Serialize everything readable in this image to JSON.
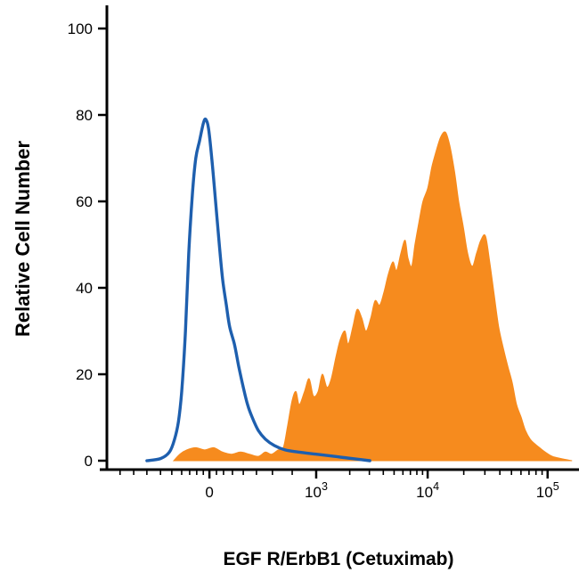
{
  "chart_data": {
    "type": "area",
    "subtype": "flow-cytometry-histogram-overlay",
    "title": "",
    "xlabel": "EGF R/ErbB1 (Cetuximab)",
    "ylabel": "Relative Cell Number",
    "background": "#ffffff",
    "axis_color": "#000000",
    "grid": false,
    "legend": "none",
    "x_scale": "biexponential-log",
    "ylim": [
      0,
      100
    ],
    "y_ticks": [
      0,
      20,
      40,
      60,
      80,
      100
    ],
    "x_ticks": [
      {
        "label": "0",
        "fx": 0.218
      },
      {
        "base": "10",
        "exp": "3",
        "fx": 0.445
      },
      {
        "base": "10",
        "exp": "4",
        "fx": 0.682
      },
      {
        "base": "10",
        "exp": "5",
        "fx": 0.937
      }
    ],
    "minor_ticks_fx": [
      0.028,
      0.057,
      0.085,
      0.114,
      0.138,
      0.159,
      0.176,
      0.191,
      0.205,
      0.233,
      0.248,
      0.267,
      0.29,
      0.318,
      0.352,
      0.394
    ],
    "series": [
      {
        "name": "orange-filled-histogram",
        "style": "filled",
        "color": "#f68b1e",
        "points": [
          [
            0.142,
            0
          ],
          [
            0.155,
            1.5
          ],
          [
            0.17,
            2.5
          ],
          [
            0.189,
            3
          ],
          [
            0.208,
            2.5
          ],
          [
            0.227,
            3
          ],
          [
            0.246,
            2
          ],
          [
            0.265,
            1.5
          ],
          [
            0.284,
            2
          ],
          [
            0.303,
            1.5
          ],
          [
            0.322,
            1
          ],
          [
            0.337,
            2
          ],
          [
            0.35,
            1.5
          ],
          [
            0.364,
            2.5
          ],
          [
            0.375,
            3
          ],
          [
            0.384,
            8
          ],
          [
            0.394,
            14
          ],
          [
            0.402,
            16
          ],
          [
            0.409,
            13
          ],
          [
            0.42,
            16
          ],
          [
            0.43,
            19
          ],
          [
            0.439,
            15
          ],
          [
            0.449,
            16
          ],
          [
            0.458,
            20
          ],
          [
            0.468,
            17
          ],
          [
            0.477,
            19
          ],
          [
            0.487,
            24
          ],
          [
            0.496,
            28
          ],
          [
            0.506,
            30
          ],
          [
            0.513,
            27
          ],
          [
            0.523,
            31
          ],
          [
            0.532,
            35
          ],
          [
            0.542,
            33
          ],
          [
            0.551,
            30
          ],
          [
            0.561,
            33
          ],
          [
            0.57,
            37
          ],
          [
            0.58,
            36
          ],
          [
            0.589,
            39
          ],
          [
            0.598,
            43
          ],
          [
            0.608,
            46
          ],
          [
            0.616,
            44
          ],
          [
            0.625,
            48
          ],
          [
            0.634,
            51
          ],
          [
            0.64,
            47
          ],
          [
            0.648,
            45
          ],
          [
            0.655,
            50
          ],
          [
            0.663,
            55
          ],
          [
            0.672,
            60
          ],
          [
            0.682,
            63
          ],
          [
            0.691,
            68
          ],
          [
            0.701,
            72
          ],
          [
            0.71,
            75
          ],
          [
            0.72,
            76
          ],
          [
            0.729,
            73
          ],
          [
            0.739,
            67
          ],
          [
            0.748,
            60
          ],
          [
            0.758,
            54
          ],
          [
            0.767,
            48
          ],
          [
            0.777,
            45
          ],
          [
            0.786,
            48
          ],
          [
            0.795,
            51
          ],
          [
            0.805,
            52
          ],
          [
            0.814,
            46
          ],
          [
            0.824,
            38
          ],
          [
            0.833,
            31
          ],
          [
            0.843,
            26
          ],
          [
            0.852,
            22
          ],
          [
            0.862,
            18
          ],
          [
            0.871,
            13
          ],
          [
            0.881,
            10
          ],
          [
            0.89,
            7
          ],
          [
            0.9,
            5
          ],
          [
            0.909,
            4
          ],
          [
            0.92,
            3
          ],
          [
            0.932,
            2
          ],
          [
            0.947,
            1
          ],
          [
            0.966,
            0.5
          ],
          [
            0.989,
            0
          ]
        ]
      },
      {
        "name": "blue-outline-histogram",
        "style": "line",
        "color": "#1e5fae",
        "points": [
          [
            0.085,
            0
          ],
          [
            0.114,
            0.5
          ],
          [
            0.133,
            2
          ],
          [
            0.144,
            5
          ],
          [
            0.152,
            9
          ],
          [
            0.159,
            16
          ],
          [
            0.167,
            30
          ],
          [
            0.174,
            48
          ],
          [
            0.182,
            62
          ],
          [
            0.189,
            70
          ],
          [
            0.197,
            74
          ],
          [
            0.205,
            78
          ],
          [
            0.21,
            79
          ],
          [
            0.216,
            77
          ],
          [
            0.223,
            70
          ],
          [
            0.231,
            60
          ],
          [
            0.239,
            50
          ],
          [
            0.246,
            42
          ],
          [
            0.254,
            36
          ],
          [
            0.261,
            31
          ],
          [
            0.271,
            27
          ],
          [
            0.28,
            22
          ],
          [
            0.29,
            17
          ],
          [
            0.299,
            13
          ],
          [
            0.309,
            10
          ],
          [
            0.322,
            7
          ],
          [
            0.337,
            5
          ],
          [
            0.356,
            3.5
          ],
          [
            0.379,
            2.5
          ],
          [
            0.407,
            2
          ],
          [
            0.445,
            1.5
          ],
          [
            0.483,
            1
          ],
          [
            0.521,
            0.5
          ],
          [
            0.559,
            0
          ]
        ]
      }
    ]
  }
}
